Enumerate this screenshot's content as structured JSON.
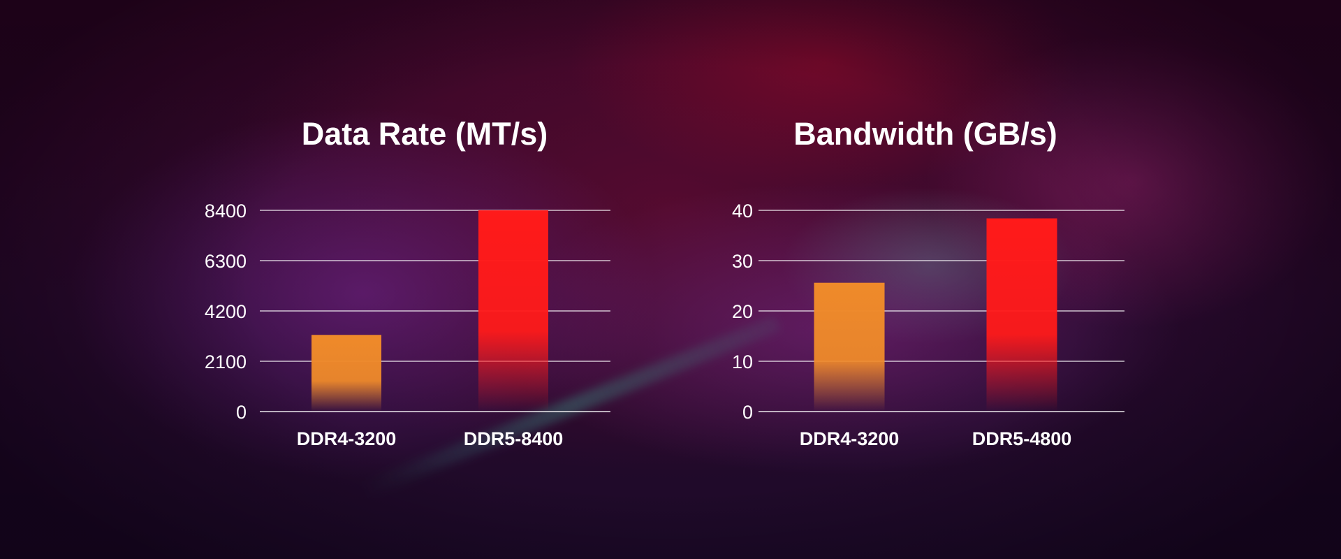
{
  "chart_data": [
    {
      "type": "bar",
      "title": "Data Rate (MT/s)",
      "categories": [
        "DDR4-3200",
        "DDR5-8400"
      ],
      "values": [
        3200,
        8400
      ],
      "colors": [
        "#ef8a2a",
        "#ff1a1a"
      ],
      "yticks": [
        "0",
        "2100",
        "4200",
        "6300",
        "8400"
      ],
      "ylim": [
        0,
        8400
      ],
      "grid": true
    },
    {
      "type": "bar",
      "title": "Bandwidth (GB/s)",
      "categories": [
        "DDR4-3200",
        "DDR5-4800"
      ],
      "values": [
        25.6,
        38.4
      ],
      "colors": [
        "#ef8a2a",
        "#ff1a1a"
      ],
      "yticks": [
        "0",
        "10",
        "20",
        "30",
        "40"
      ],
      "ylim": [
        0,
        40
      ],
      "grid": true
    }
  ]
}
